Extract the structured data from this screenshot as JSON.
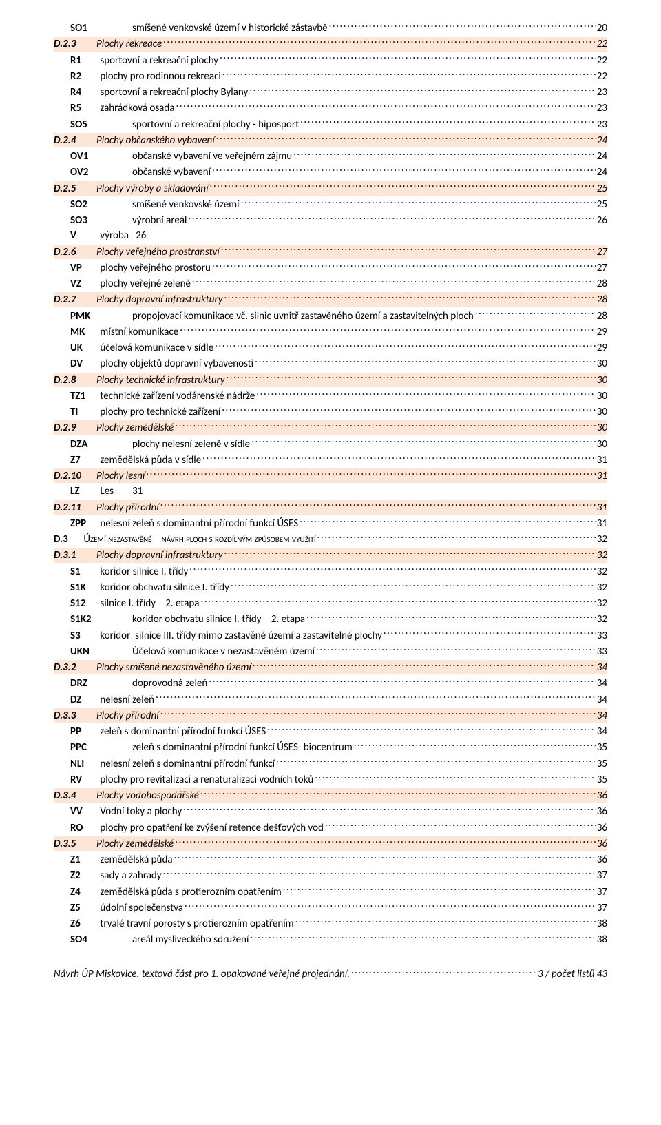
{
  "entries": [
    {
      "level": 2,
      "code": "SO1",
      "text": "smíšené venkovské území v historické zástavbě",
      "page": "20",
      "wideCode": true
    },
    {
      "level": 1,
      "code": "D.2.3",
      "text": "Plochy rekreace",
      "page": "22"
    },
    {
      "level": 2,
      "code": "R1",
      "text": "sportovní a rekreační plochy",
      "page": "22"
    },
    {
      "level": 2,
      "code": "R2",
      "text": "plochy pro rodinnou rekreaci",
      "page": "22"
    },
    {
      "level": 2,
      "code": "R4",
      "text": "sportovní a rekreační plochy Bylany",
      "page": "23"
    },
    {
      "level": 2,
      "code": "R5",
      "text": "zahrádková osada",
      "page": "23"
    },
    {
      "level": 2,
      "code": "SO5",
      "text": "sportovní a rekreační plochy - hiposport",
      "page": "23",
      "wideCode": true
    },
    {
      "level": 1,
      "code": "D.2.4",
      "text": "Plochy občanského vybavení",
      "page": "24"
    },
    {
      "level": 2,
      "code": "OV1",
      "text": "občanské vybavení ve veřejném zájmu",
      "page": "24",
      "wideCode": true
    },
    {
      "level": 2,
      "code": "OV2",
      "text": "občanské vybavení",
      "page": "24",
      "wideCode": true
    },
    {
      "level": 1,
      "code": "D.2.5",
      "text": "Plochy výroby a skladování",
      "page": "25"
    },
    {
      "level": 2,
      "code": "SO2",
      "text": "smíšené venkovské území",
      "page": "25",
      "wideCode": true
    },
    {
      "level": 2,
      "code": "SO3",
      "text": "výrobní areál",
      "page": "26",
      "wideCode": true
    },
    {
      "level": 2,
      "code": "V",
      "text": "výroba   26",
      "nopage": true
    },
    {
      "level": 1,
      "code": "D.2.6",
      "text": "Plochy veřejného prostranství",
      "page": "27"
    },
    {
      "level": 2,
      "code": "VP",
      "text": "plochy veřejného prostoru",
      "page": "27"
    },
    {
      "level": 2,
      "code": "VZ",
      "text": "plochy veřejné zeleně",
      "page": "28"
    },
    {
      "level": 1,
      "code": "D.2.7",
      "text": "Plochy dopravní infrastruktury",
      "page": "28"
    },
    {
      "level": 2,
      "code": "PMK",
      "text": "propojovací komunikace vč. silnic uvnitř zastavěného území a zastavitelných ploch",
      "page": "28",
      "wideCode": true
    },
    {
      "level": 2,
      "code": "MK",
      "text": "místní komunikace",
      "page": "29"
    },
    {
      "level": 2,
      "code": "UK",
      "text": "účelová komunikace v sídle",
      "page": "29"
    },
    {
      "level": 2,
      "code": "DV",
      "text": "plochy objektů dopravní vybavenosti",
      "page": "30"
    },
    {
      "level": 1,
      "code": "D.2.8",
      "text": "Plochy technické infrastruktury",
      "page": "30"
    },
    {
      "level": 2,
      "code": "TZ1",
      "text": "technické zařízení vodárenské nádrže",
      "page": "30"
    },
    {
      "level": 2,
      "code": "TI",
      "text": "plochy pro technické zařízení",
      "page": "30"
    },
    {
      "level": 1,
      "code": "D.2.9",
      "text": "Plochy zemědělské",
      "page": "30"
    },
    {
      "level": 2,
      "code": "DZA",
      "text": "plochy nelesní zeleně v sídle",
      "page": "30",
      "wideCode": true
    },
    {
      "level": 2,
      "code": "Z7",
      "text": "zemědělská půda v sídle",
      "page": "31"
    },
    {
      "level": 1,
      "code": "D.2.10",
      "text": "Plochy lesní",
      "page": "31"
    },
    {
      "level": 2,
      "code": "LZ",
      "text": "Les        31",
      "nopage": true
    },
    {
      "level": 1,
      "code": "D.2.11",
      "text": "Plochy přírodní",
      "page": "31"
    },
    {
      "level": 2,
      "code": "ZPP",
      "text": "nelesní zeleň s dominantní přírodní funkcí ÚSES",
      "page": "31"
    },
    {
      "level": 3,
      "code": "D.3",
      "text": "Území nezastavěné – návrh ploch s rozdílným způsobem využití",
      "page": "32",
      "smallcaps": true
    },
    {
      "level": 1,
      "code": "D.3.1",
      "text": "Plochy dopravní infrastruktury",
      "page": "32"
    },
    {
      "level": 2,
      "code": "S1",
      "text": "koridor silnice I. třídy",
      "page": "32"
    },
    {
      "level": 2,
      "code": "S1K",
      "text": "koridor obchvatu silnice I. třídy",
      "page": "32"
    },
    {
      "level": 2,
      "code": "S12",
      "text": "silnice I. třídy – 2. etapa",
      "page": "32"
    },
    {
      "level": 2,
      "code": "S1K2",
      "text": "koridor obchvatu silnice I. třídy – 2. etapa",
      "page": "32",
      "wideCode": true
    },
    {
      "level": 2,
      "code": "S3",
      "text": "koridor  silnice III. třídy mimo zastavěné území a zastavitelné plochy",
      "page": "33"
    },
    {
      "level": 2,
      "code": "UKN",
      "text": "Účelová komunikace v nezastavěném území",
      "page": "33",
      "wideCode": true
    },
    {
      "level": 1,
      "code": "D.3.2",
      "text": "Plochy smíšené nezastavěného území",
      "page": "34"
    },
    {
      "level": 2,
      "code": "DRZ",
      "text": "doprovodná zeleň",
      "page": "34",
      "wideCode": true
    },
    {
      "level": 2,
      "code": "DZ",
      "text": "nelesní zeleň",
      "page": "34"
    },
    {
      "level": 1,
      "code": "D.3.3",
      "text": "Plochy přírodní",
      "page": "34"
    },
    {
      "level": 2,
      "code": "PP",
      "text": "zeleň s dominantní přírodní funkcí ÚSES",
      "page": "34"
    },
    {
      "level": 2,
      "code": "PPC",
      "text": "zeleň s dominantní přírodní funkcí ÚSES- biocentrum",
      "page": "35",
      "wideCode": true
    },
    {
      "level": 2,
      "code": "NLI",
      "text": "nelesní zeleň s dominantní přírodní funkcí",
      "page": "35"
    },
    {
      "level": 2,
      "code": "RV",
      "text": "plochy pro revitalizaci a renaturalizaci vodních toků",
      "page": "35"
    },
    {
      "level": 1,
      "code": "D.3.4",
      "text": "Plochy vodohospodářské",
      "page": "36"
    },
    {
      "level": 2,
      "code": "VV",
      "text": "Vodní toky a plochy",
      "page": "36"
    },
    {
      "level": 2,
      "code": "RO",
      "text": "plochy pro opatření ke zvýšení retence dešťových vod",
      "page": "36"
    },
    {
      "level": 1,
      "code": "D.3.5",
      "text": "Plochy zemědělské",
      "page": "36"
    },
    {
      "level": 2,
      "code": "Z1",
      "text": "zemědělská půda",
      "page": "36"
    },
    {
      "level": 2,
      "code": "Z2",
      "text": "sady a zahrady",
      "page": "37"
    },
    {
      "level": 2,
      "code": "Z4",
      "text": "zemědělská půda s protierozním opatřením",
      "page": "37"
    },
    {
      "level": 2,
      "code": "Z5",
      "text": "údolní společenstva",
      "page": "37"
    },
    {
      "level": 2,
      "code": "Z6",
      "text": "trvalé travní porosty s protierozním opatřením",
      "page": "38"
    },
    {
      "level": 2,
      "code": "SO4",
      "text": "areál mysliveckého sdružení",
      "page": "38",
      "wideCode": true
    }
  ],
  "footer": {
    "text": "Návrh ÚP Miskovice, textová část pro 1. opakované veřejné projednání.",
    "page": "3 / počet listů 43"
  }
}
